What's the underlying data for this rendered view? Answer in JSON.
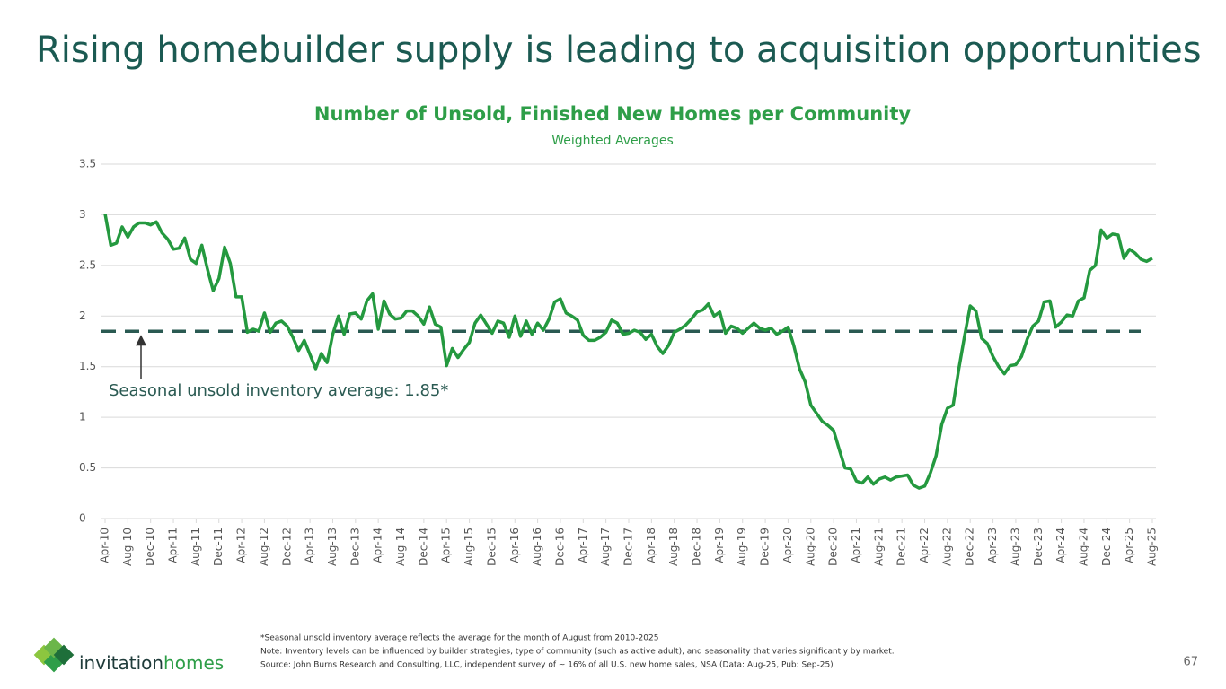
{
  "title": "Rising homebuilder supply is leading to acquisition opportunities",
  "chart_data": {
    "type": "line",
    "title": "Number of Unsold, Finished New Homes per Community",
    "subtitle": "Weighted Averages",
    "categories": [
      "Apr-10",
      null,
      null,
      null,
      "Aug-10",
      null,
      null,
      null,
      "Dec-10",
      null,
      null,
      null,
      "Apr-11",
      null,
      null,
      null,
      "Aug-11",
      null,
      null,
      null,
      "Dec-11",
      null,
      null,
      null,
      "Apr-12",
      null,
      null,
      null,
      "Aug-12",
      null,
      null,
      null,
      "Dec-12",
      null,
      null,
      null,
      "Apr-13",
      null,
      null,
      null,
      "Aug-13",
      null,
      null,
      null,
      "Dec-13",
      null,
      null,
      null,
      "Apr-14",
      null,
      null,
      null,
      "Aug-14",
      null,
      null,
      null,
      "Dec-14",
      null,
      null,
      null,
      "Apr-15",
      null,
      null,
      null,
      "Aug-15",
      null,
      null,
      null,
      "Dec-15",
      null,
      null,
      null,
      "Apr-16",
      null,
      null,
      null,
      "Aug-16",
      null,
      null,
      null,
      "Dec-16",
      null,
      null,
      null,
      "Apr-17",
      null,
      null,
      null,
      "Aug-17",
      null,
      null,
      null,
      "Dec-17",
      null,
      null,
      null,
      "Apr-18",
      null,
      null,
      null,
      "Aug-18",
      null,
      null,
      null,
      "Dec-18",
      null,
      null,
      null,
      "Apr-19",
      null,
      null,
      null,
      "Aug-19",
      null,
      null,
      null,
      "Dec-19",
      null,
      null,
      null,
      "Apr-20",
      null,
      null,
      null,
      "Aug-20",
      null,
      null,
      null,
      "Dec-20",
      null,
      null,
      null,
      "Apr-21",
      null,
      null,
      null,
      "Aug-21",
      null,
      null,
      null,
      "Dec-21",
      null,
      null,
      null,
      "Apr-22",
      null,
      null,
      null,
      "Aug-22",
      null,
      null,
      null,
      "Dec-22",
      null,
      null,
      null,
      "Apr-23",
      null,
      null,
      null,
      "Aug-23",
      null,
      null,
      null,
      "Dec-23",
      null,
      null,
      null,
      "Apr-24",
      null,
      null,
      null,
      "Aug-24",
      null,
      null,
      null,
      "Dec-24",
      null,
      null,
      null,
      "Apr-25",
      null,
      null,
      null,
      "Aug-25"
    ],
    "values": [
      3.01,
      2.7,
      2.72,
      2.88,
      2.78,
      2.88,
      2.92,
      2.92,
      2.9,
      2.93,
      2.82,
      2.76,
      2.66,
      2.67,
      2.77,
      2.56,
      2.52,
      2.7,
      2.46,
      2.25,
      2.37,
      2.68,
      2.52,
      2.19,
      2.19,
      1.84,
      1.87,
      1.85,
      2.03,
      1.84,
      1.93,
      1.95,
      1.9,
      1.79,
      1.66,
      1.76,
      1.62,
      1.48,
      1.63,
      1.54,
      1.82,
      2.0,
      1.82,
      2.02,
      2.03,
      1.97,
      2.15,
      2.22,
      1.87,
      2.15,
      2.02,
      1.97,
      1.98,
      2.05,
      2.05,
      2.0,
      1.92,
      2.09,
      1.92,
      1.89,
      1.51,
      1.68,
      1.59,
      1.67,
      1.74,
      1.93,
      2.01,
      1.92,
      1.83,
      1.95,
      1.93,
      1.79,
      2.0,
      1.8,
      1.95,
      1.82,
      1.93,
      1.86,
      1.97,
      2.14,
      2.17,
      2.03,
      2.0,
      1.96,
      1.81,
      1.76,
      1.76,
      1.79,
      1.84,
      1.96,
      1.93,
      1.82,
      1.83,
      1.86,
      1.84,
      1.77,
      1.82,
      1.7,
      1.63,
      1.71,
      1.84,
      1.87,
      1.91,
      1.97,
      2.04,
      2.06,
      2.12,
      2.0,
      2.04,
      1.83,
      1.9,
      1.88,
      1.83,
      1.88,
      1.93,
      1.88,
      1.86,
      1.88,
      1.82,
      1.85,
      1.89,
      1.71,
      1.48,
      1.35,
      1.12,
      1.04,
      0.96,
      0.92,
      0.87,
      0.68,
      0.5,
      0.49,
      0.37,
      0.35,
      0.41,
      0.34,
      0.39,
      0.41,
      0.38,
      0.41,
      0.42,
      0.43,
      0.33,
      0.3,
      0.32,
      0.45,
      0.62,
      0.93,
      1.09,
      1.12,
      1.48,
      1.8,
      2.1,
      2.05,
      1.78,
      1.73,
      1.6,
      1.5,
      1.43,
      1.51,
      1.52,
      1.6,
      1.77,
      1.9,
      1.95,
      2.14,
      2.15,
      1.89,
      1.94,
      2.01,
      2.0,
      2.15,
      2.18,
      2.45,
      2.5,
      2.85,
      2.77,
      2.81,
      2.8,
      2.57,
      2.66,
      2.62,
      2.56,
      2.54,
      2.57
    ],
    "color": "#24993f",
    "ylim": [
      0,
      3.5
    ],
    "yticks": [
      0,
      0.5,
      1,
      1.5,
      2,
      2.5,
      3,
      3.5
    ],
    "grid": true,
    "reference_line": {
      "value": 1.85,
      "label": "Seasonal unsold inventory average: 1.85*",
      "color": "#2a5a52"
    }
  },
  "footnotes": [
    "*Seasonal unsold inventory average reflects the average for the month of August from 2010-2025",
    "Note: Inventory levels can be influenced by builder strategies, type of community (such as active adult), and seasonality that varies significantly by market.",
    "Source: John Burns Research and Consulting, LLC, independent survey of ~ 16% of all U.S. new home sales, NSA (Data: Aug-25, Pub: Sep-25)"
  ],
  "logo": {
    "first": "invitation",
    "second": "homes"
  },
  "page_number": 67
}
